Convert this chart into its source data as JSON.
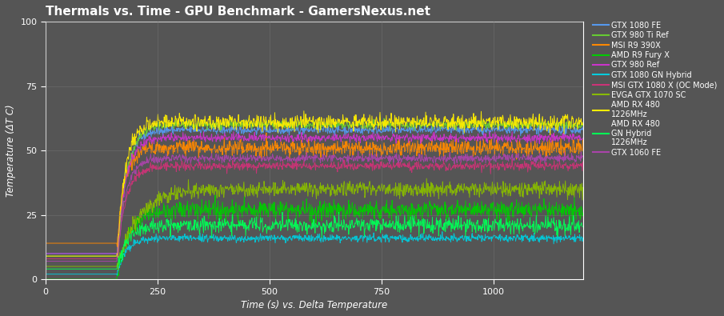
{
  "title": "Thermals vs. Time - GPU Benchmark - GamersNexus.net",
  "xlabel": "Time (s) vs. Delta Temperature",
  "ylabel": "Temperature (ΔT C)",
  "xlim": [
    0,
    1200
  ],
  "ylim": [
    0,
    100
  ],
  "xticks": [
    0,
    250,
    500,
    750,
    1000
  ],
  "yticks": [
    0,
    25,
    50,
    75,
    100
  ],
  "background_color": "#555555",
  "grid_color": "#777777",
  "text_color": "#ffffff",
  "figsize": [
    9.05,
    3.95
  ],
  "dpi": 100,
  "series": [
    {
      "label": "GTX 1080 FE",
      "color": "#5599ee",
      "idle": 10,
      "ramp_start": 160,
      "ramp_end": 260,
      "steady": 58,
      "noise": 0.8
    },
    {
      "label": "GTX 980 Ti Ref",
      "color": "#66cc33",
      "idle": 9,
      "ramp_start": 160,
      "ramp_end": 270,
      "steady": 60,
      "noise": 0.8
    },
    {
      "label": "MSI R9 390X",
      "color": "#ff8800",
      "idle": 14,
      "ramp_start": 160,
      "ramp_end": 245,
      "steady": 51,
      "noise": 1.5
    },
    {
      "label": "AMD R9 Fury X",
      "color": "#00cc00",
      "idle": 0,
      "ramp_start": 160,
      "ramp_end": 280,
      "steady": 27,
      "noise": 1.8
    },
    {
      "label": "GTX 980 Ref",
      "color": "#cc33cc",
      "idle": 10,
      "ramp_start": 160,
      "ramp_end": 260,
      "steady": 55,
      "noise": 0.8
    },
    {
      "label": "GTX 1080 GN Hybrid",
      "color": "#00ccdd",
      "idle": 2,
      "ramp_start": 160,
      "ramp_end": 260,
      "steady": 16,
      "noise": 0.7
    },
    {
      "label": "MSI GTX 1080 X (OC Mode)",
      "color": "#cc3377",
      "idle": 8,
      "ramp_start": 160,
      "ramp_end": 260,
      "steady": 44,
      "noise": 0.8
    },
    {
      "label": "EVGA GTX 1070 SC",
      "color": "#88bb00",
      "idle": 5,
      "ramp_start": 160,
      "ramp_end": 400,
      "steady": 35,
      "noise": 1.5
    },
    {
      "label": "AMD RX 480\n1226MHz",
      "color": "#ffee00",
      "idle": 9,
      "ramp_start": 160,
      "ramp_end": 250,
      "steady": 61,
      "noise": 1.5
    },
    {
      "label": "AMD RX 480\nGN Hybrid\n1226MHz",
      "color": "#00ff55",
      "idle": 4,
      "ramp_start": 160,
      "ramp_end": 275,
      "steady": 21,
      "noise": 1.5
    },
    {
      "label": "GTX 1060 FE",
      "color": "#aa44aa",
      "idle": 7,
      "ramp_start": 160,
      "ramp_end": 255,
      "steady": 47,
      "noise": 0.8
    }
  ]
}
